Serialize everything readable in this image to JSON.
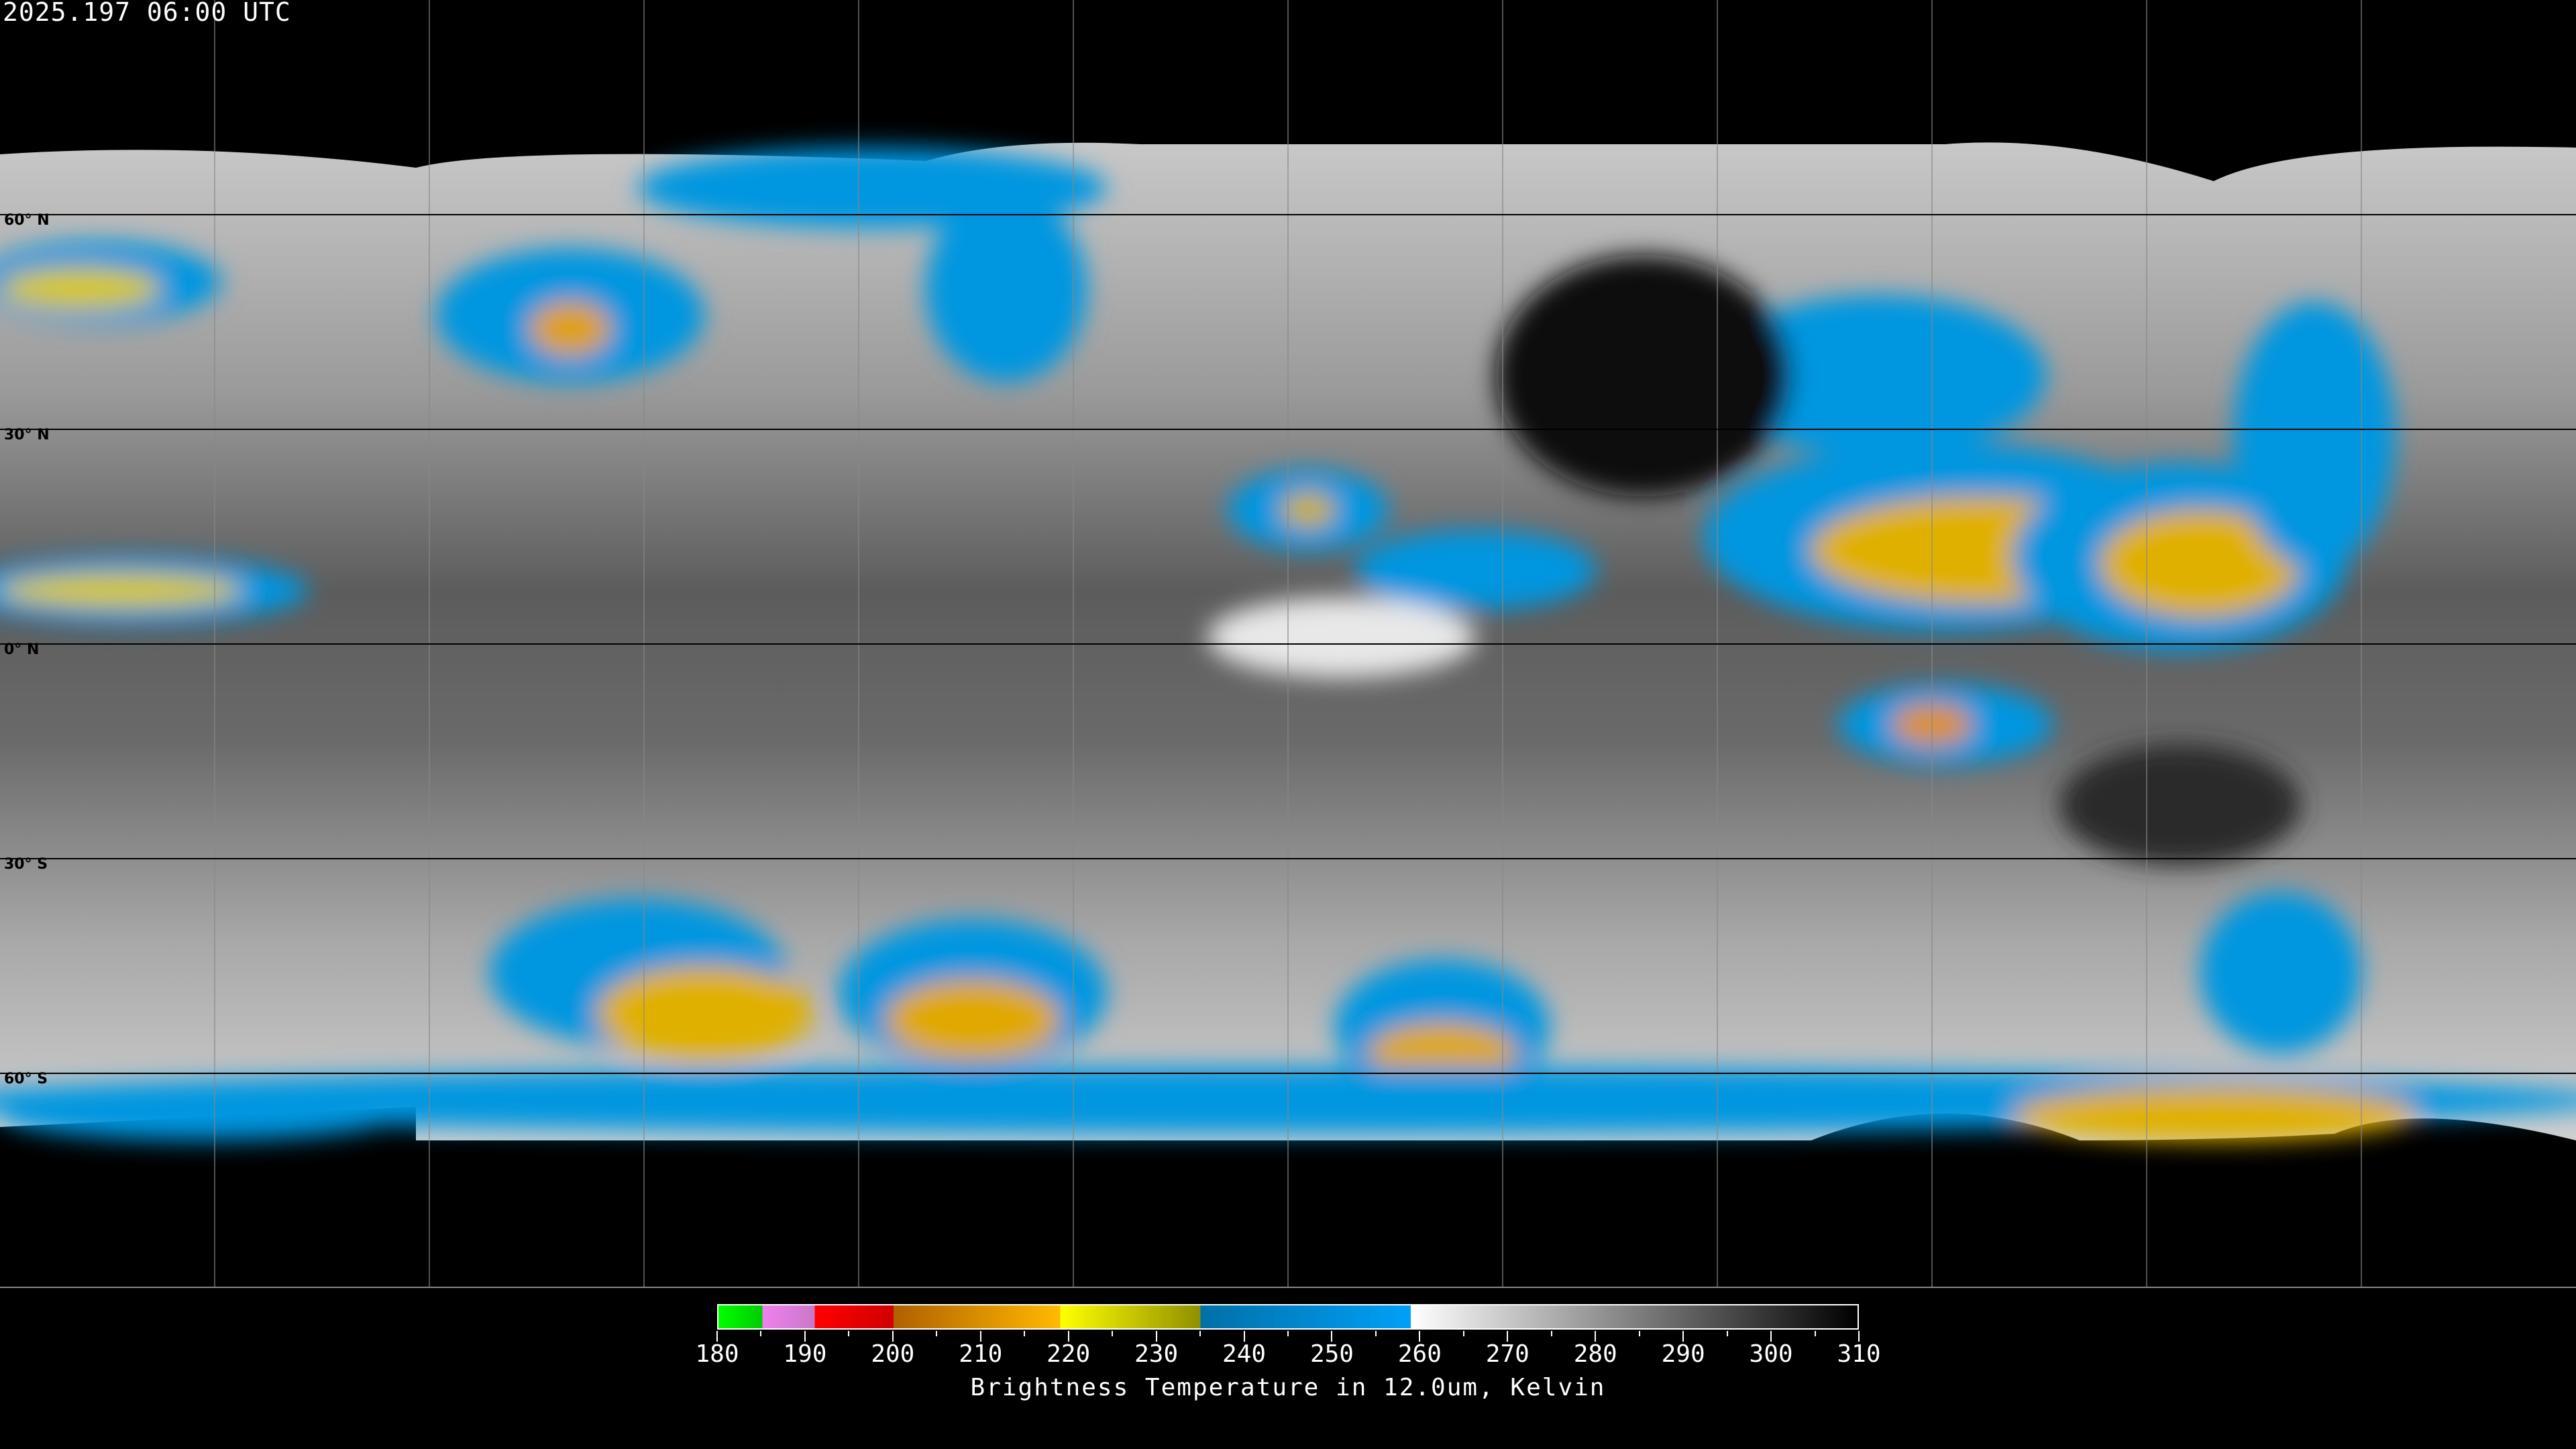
{
  "header": {
    "title": "2025.197 06:00 UTC"
  },
  "map": {
    "projection": "equirectangular",
    "graticule_spacing_deg": 30,
    "lat_labels": [
      "60° N",
      "30° N",
      "0° N",
      "30° S",
      "60° S"
    ],
    "grid_color": "#000000",
    "coastline_color": "#ffffff"
  },
  "colorbar": {
    "min": 180,
    "max": 310,
    "tick_step": 5,
    "labels": [
      "180",
      "190",
      "200",
      "210",
      "220",
      "230",
      "240",
      "250",
      "260",
      "270",
      "280",
      "290",
      "300",
      "310"
    ],
    "title": "Brightness Temperature in 12.0um, Kelvin",
    "segments": [
      {
        "from": 180,
        "to": 185,
        "colors": [
          "#00ff00",
          "#00cc00"
        ]
      },
      {
        "from": 185,
        "to": 191,
        "colors": [
          "#f080f0",
          "#c878c8"
        ]
      },
      {
        "from": 191,
        "to": 200,
        "colors": [
          "#ff0000",
          "#d00000"
        ]
      },
      {
        "from": 200,
        "to": 219,
        "colors": [
          "#b06000",
          "#ffba00"
        ]
      },
      {
        "from": 219,
        "to": 235,
        "colors": [
          "#ffff00",
          "#909000"
        ]
      },
      {
        "from": 235,
        "to": 259,
        "colors": [
          "#0070a8",
          "#00a0f8"
        ]
      },
      {
        "from": 259,
        "to": 310,
        "colors": [
          "#ffffff",
          "#000000"
        ]
      }
    ]
  }
}
